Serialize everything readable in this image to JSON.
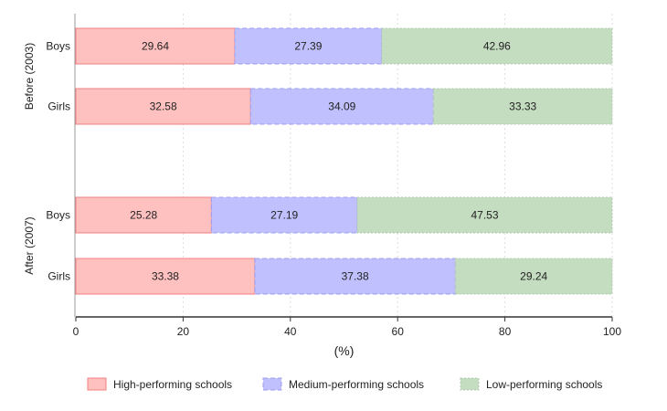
{
  "chart_data": {
    "type": "bar",
    "orientation": "horizontal",
    "stacked": true,
    "groups": [
      {
        "label": "Before (2003)",
        "categories": [
          "Boys",
          "Girls"
        ]
      },
      {
        "label": "After (2007)",
        "categories": [
          "Boys",
          "Girls"
        ]
      }
    ],
    "series": [
      {
        "name": "High-performing schools",
        "color": "#ffc0c0",
        "stroke": "#f08080",
        "values": [
          29.64,
          32.58,
          25.28,
          33.38
        ]
      },
      {
        "name": "Medium-performing schools",
        "color": "#c0c0ff",
        "stroke": "#9c9cf0",
        "values": [
          27.39,
          34.09,
          27.19,
          37.38
        ]
      },
      {
        "name": "Low-performing schools",
        "color": "#c4dcc0",
        "stroke": "#b0ccb0",
        "values": [
          42.96,
          33.33,
          47.53,
          29.24
        ]
      }
    ],
    "xlabel": "(%)",
    "xlim": [
      0,
      100
    ],
    "xticks": [
      "0",
      "20",
      "40",
      "60",
      "80",
      "100"
    ],
    "grid": true,
    "legend": "bottom"
  }
}
